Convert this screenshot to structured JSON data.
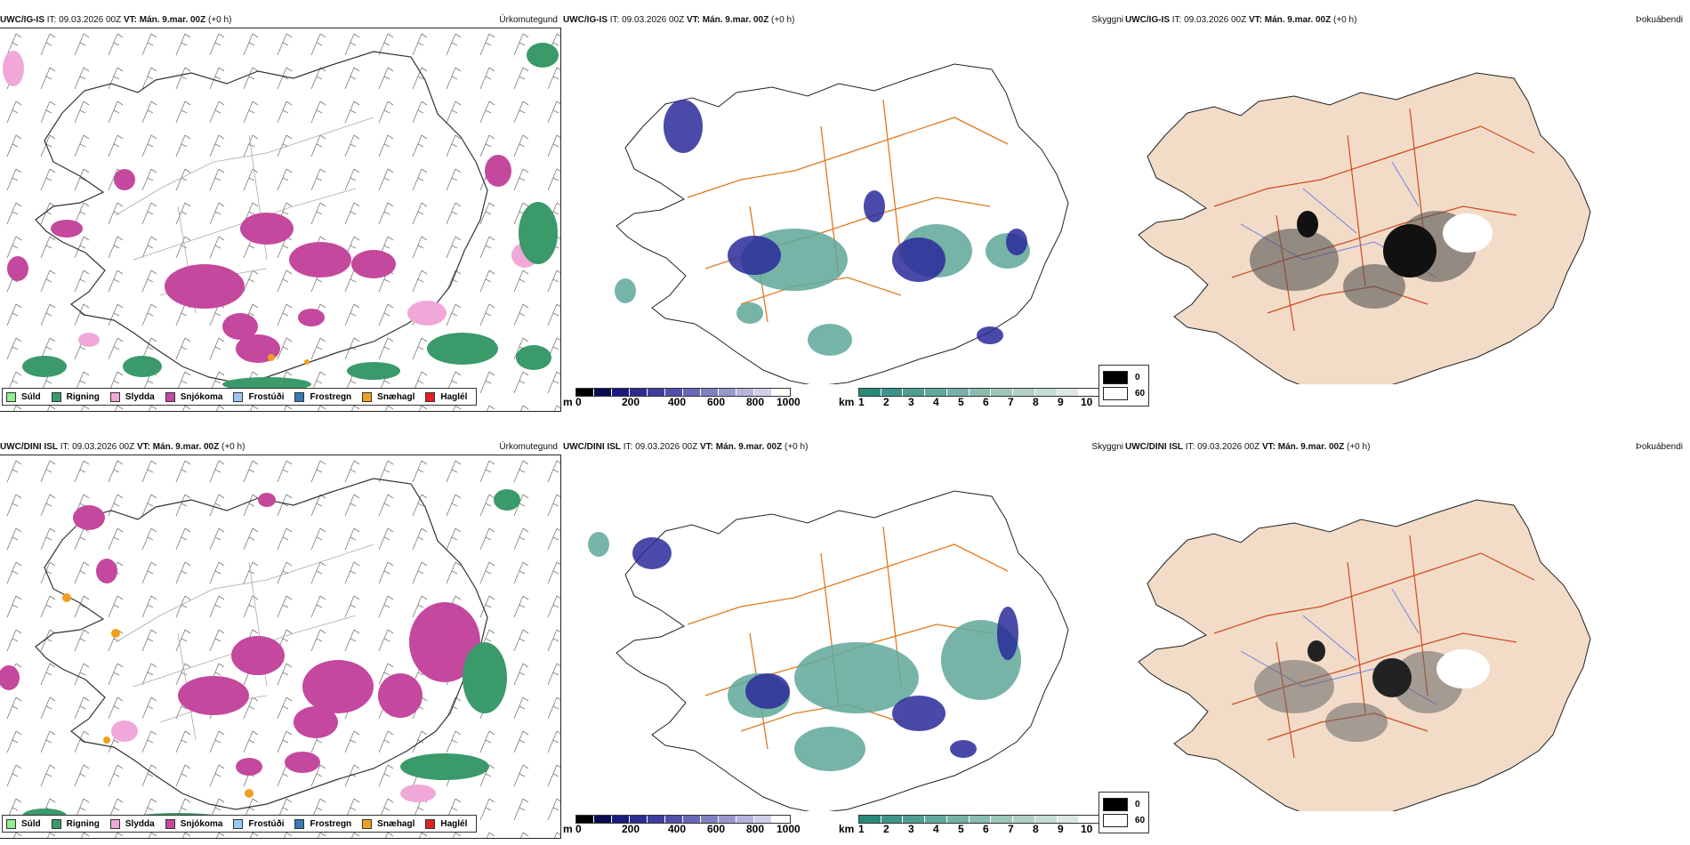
{
  "panels": [
    {
      "model": "UWC/IG-IS",
      "it_label": "IT:",
      "it": "09.03.2026 00Z",
      "vt_label": "VT:",
      "vt": "Mán. 9.mar. 00Z",
      "lead": "(+0 h)",
      "type": "Úrkomutegund"
    },
    {
      "model": "UWC/IG-IS",
      "it_label": "IT:",
      "it": "09.03.2026 00Z",
      "vt_label": "VT:",
      "vt": "Mán. 9.mar. 00Z",
      "lead": "(+0 h)",
      "type": "Skyggni"
    },
    {
      "model": "UWC/IG-IS",
      "it_label": "IT:",
      "it": "09.03.2026 00Z",
      "vt_label": "VT:",
      "vt": "Mán. 9.mar. 00Z",
      "lead": "(+0 h)",
      "type": "Þokuábendi"
    },
    {
      "model": "UWC/DINI ISL",
      "it_label": "IT:",
      "it": "09.03.2026 00Z",
      "vt_label": "VT:",
      "vt": "Mán. 9.mar. 00Z",
      "lead": "(+0 h)",
      "type": "Úrkomutegund"
    },
    {
      "model": "UWC/DINI ISL",
      "it_label": "IT:",
      "it": "09.03.2026 00Z",
      "vt_label": "VT:",
      "vt": "Mán. 9.mar. 00Z",
      "lead": "(+0 h)",
      "type": "Skyggni"
    },
    {
      "model": "UWC/DINI ISL",
      "it_label": "IT:",
      "it": "09.03.2026 00Z",
      "vt_label": "VT:",
      "vt": "Mán. 9.mar. 00Z",
      "lead": "(+0 h)",
      "type": "Þokuábendi"
    }
  ],
  "precip_legend": [
    {
      "label": "Súld",
      "color": "#90ee90"
    },
    {
      "label": "Rigning",
      "color": "#3a9a6a"
    },
    {
      "label": "Slydda",
      "color": "#f0a8d8"
    },
    {
      "label": "Snjókoma",
      "color": "#c4489e"
    },
    {
      "label": "Frostúði",
      "color": "#9ec8f0"
    },
    {
      "label": "Frostregn",
      "color": "#3a78b8"
    },
    {
      "label": "Snæhagl",
      "color": "#f0a020"
    },
    {
      "label": "Haglél",
      "color": "#e02020"
    }
  ],
  "ceiling_scale": {
    "unit": "m",
    "ticks": [
      "0",
      "200",
      "400",
      "600",
      "800",
      "1000"
    ],
    "colors": [
      "#000000",
      "#0a0a50",
      "#1a1a80",
      "#2c2c90",
      "#3e3ea0",
      "#5050a8",
      "#6868b8",
      "#8080c0",
      "#9898cc",
      "#b4b4dc",
      "#d0d0ec",
      "#ffffff"
    ]
  },
  "visibility_scale": {
    "unit": "km",
    "ticks": [
      "1",
      "2",
      "3",
      "4",
      "5",
      "6",
      "7",
      "8",
      "9",
      "10"
    ],
    "colors": [
      "#2a8a7a",
      "#3c948a",
      "#4e9e92",
      "#62a89c",
      "#76b2a6",
      "#8abcb0",
      "#9ec6ba",
      "#b2d0c6",
      "#c6dcd4",
      "#dce8e4",
      "#ffffff"
    ]
  },
  "fog_legend": [
    {
      "label": "0",
      "color": "#000000"
    },
    {
      "label": "60",
      "color": "#ffffff"
    }
  ]
}
